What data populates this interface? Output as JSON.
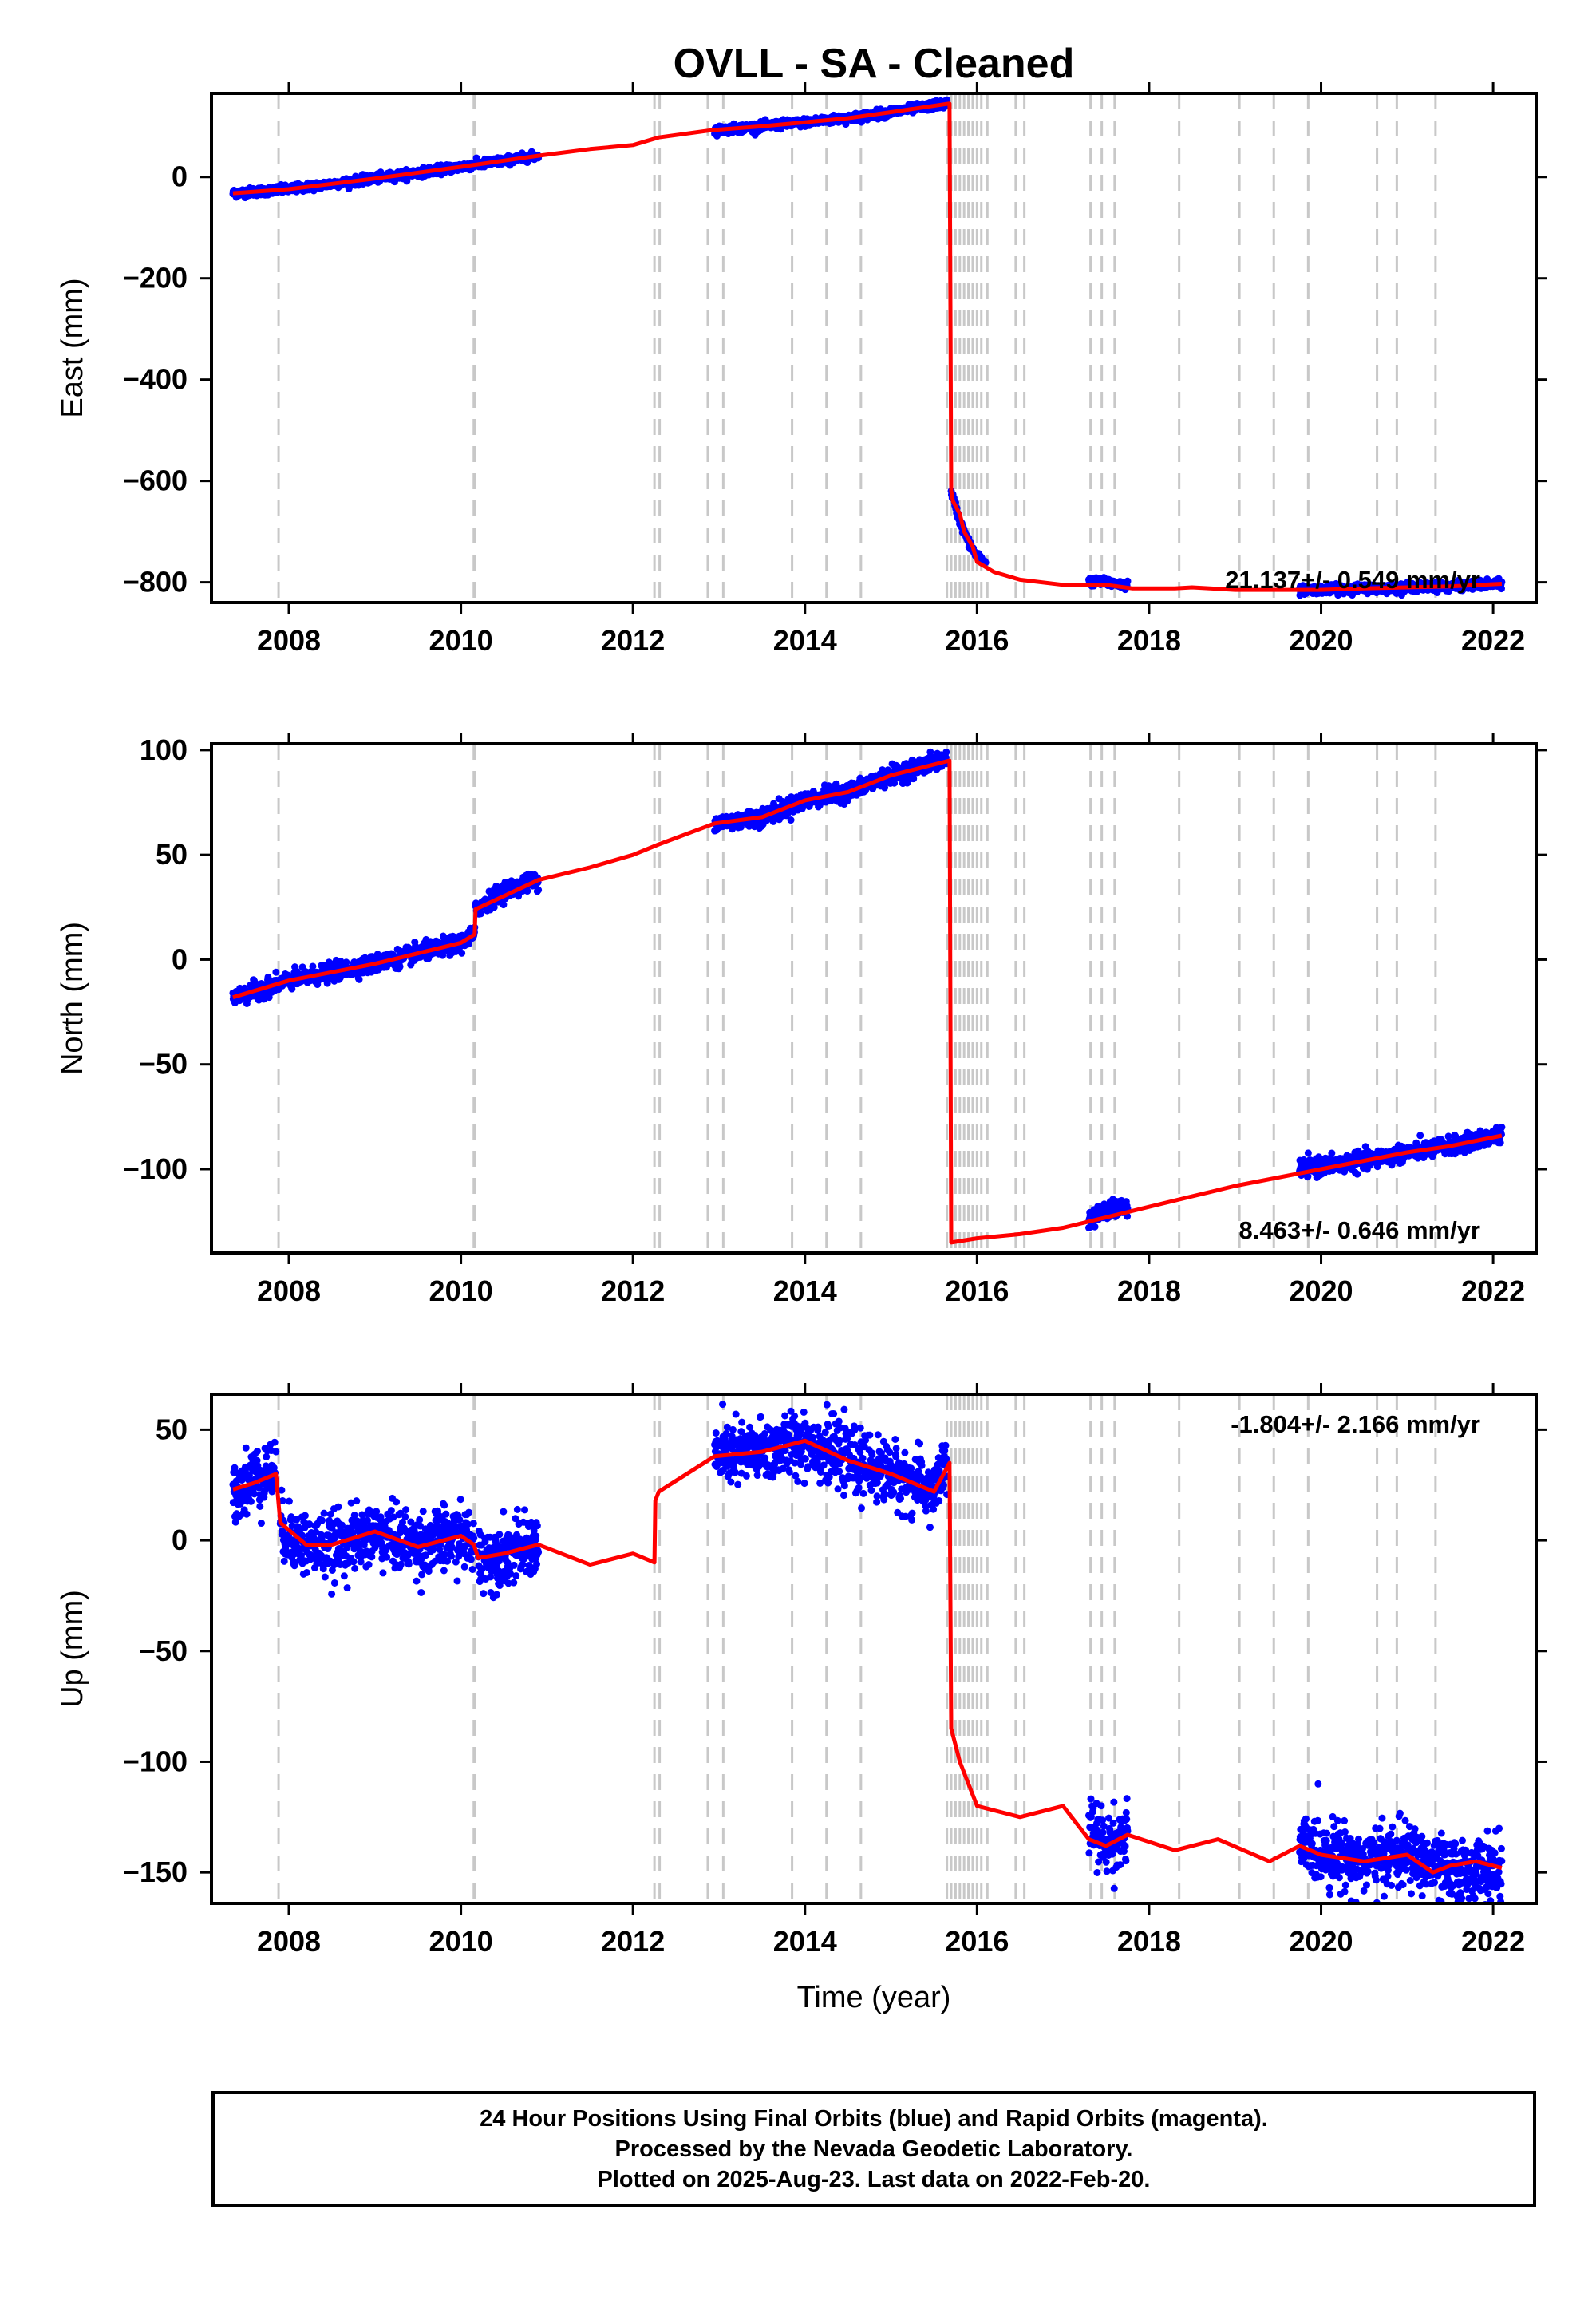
{
  "chart_data": {
    "type": "scatter",
    "title": "OVLL  - SA - Cleaned",
    "xlabel": "Time (year)",
    "xlim": [
      2007.1,
      2022.5
    ],
    "xticks": [
      2008,
      2010,
      2012,
      2014,
      2016,
      2018,
      2020,
      2022
    ],
    "colors": {
      "observations": "#0000ff",
      "model": "#ff0000",
      "offset_lines": "#c8c8c8"
    },
    "offset_events": [
      2007.88,
      2010.15,
      2010.16,
      2012.25,
      2012.31,
      2012.87,
      2013.05,
      2013.85,
      2014.25,
      2014.65,
      2015.65,
      2015.7,
      2015.75,
      2015.8,
      2015.85,
      2015.9,
      2015.95,
      2016.0,
      2016.05,
      2016.12,
      2016.45,
      2016.55,
      2017.32,
      2017.45,
      2017.6,
      2018.35,
      2019.05,
      2019.45,
      2019.85,
      2020.65,
      2020.88,
      2021.33
    ],
    "panels": [
      {
        "component": "East",
        "ylabel": "East (mm)",
        "ylim": [
          -840,
          165
        ],
        "yticks": [
          0,
          -200,
          -400,
          -600,
          -800
        ],
        "rate_text": "21.137+/- 0.549 mm/yr",
        "rate_position": "bottom-right",
        "observation_segments": [
          {
            "x": [
              2007.35,
              2008.0,
              2009.0,
              2010.0,
              2010.9
            ],
            "y": [
              -32,
              -24,
              -3,
              20,
              42
            ]
          },
          {
            "x": [
              2012.95,
              2013.5,
              2014.0,
              2014.5,
              2015.0,
              2015.65
            ],
            "y": [
              92,
              100,
              108,
              116,
              128,
              145
            ]
          },
          {
            "x": [
              2015.7,
              2015.8,
              2015.9,
              2016.0,
              2016.1
            ],
            "y": [
              -620,
              -680,
              -720,
              -750,
              -760
            ]
          },
          {
            "x": [
              2017.3,
              2017.5,
              2017.75
            ],
            "y": [
              -798,
              -800,
              -806
            ]
          },
          {
            "x": [
              2019.75,
              2020.5,
              2021.0,
              2021.5,
              2022.1
            ],
            "y": [
              -815,
              -812,
              -810,
              -808,
              -803
            ]
          }
        ],
        "model_line": {
          "x": [
            2007.35,
            2008.0,
            2009.0,
            2010.0,
            2010.9,
            2011.5,
            2012.0,
            2012.3,
            2012.9,
            2013.5,
            2014.0,
            2014.5,
            2015.0,
            2015.68,
            2015.7,
            2015.72,
            2015.8,
            2015.85,
            2015.95,
            2016.0,
            2016.2,
            2016.5,
            2017.0,
            2017.5,
            2017.8,
            2018.3,
            2018.5,
            2019.0,
            2019.5,
            2020.0,
            2020.5,
            2021.0,
            2021.5,
            2022.1
          ],
          "y": [
            -32,
            -24,
            -3,
            20,
            42,
            55,
            63,
            78,
            92,
            100,
            108,
            116,
            128,
            145,
            -620,
            -640,
            -665,
            -700,
            -730,
            -760,
            -780,
            -795,
            -805,
            -805,
            -812,
            -812,
            -810,
            -815,
            -815,
            -815,
            -812,
            -810,
            -808,
            -803
          ]
        }
      },
      {
        "component": "North",
        "ylabel": "North (mm)",
        "ylim": [
          -140,
          103
        ],
        "yticks": [
          100,
          50,
          0,
          -50,
          -100
        ],
        "rate_text": "8.463+/- 0.646 mm/yr",
        "rate_position": "bottom-right",
        "observation_segments": [
          {
            "x": [
              2007.35,
              2008.0,
              2009.0,
              2010.0,
              2010.16
            ],
            "y": [
              -18,
              -10,
              -2,
              8,
              12
            ]
          },
          {
            "x": [
              2010.17,
              2010.5,
              2010.9
            ],
            "y": [
              24,
              33,
              38
            ]
          },
          {
            "x": [
              2012.95,
              2013.5,
              2014.0,
              2014.5,
              2015.0,
              2015.65
            ],
            "y": [
              65,
              68,
              76,
              80,
              88,
              96
            ]
          },
          {
            "x": [
              2017.3,
              2017.5,
              2017.75
            ],
            "y": [
              -124,
              -120,
              -118
            ]
          },
          {
            "x": [
              2019.75,
              2020.5,
              2021.0,
              2021.5,
              2022.1
            ],
            "y": [
              -100,
              -96,
              -92,
              -89,
              -84
            ]
          }
        ],
        "model_line": {
          "x": [
            2007.35,
            2008.0,
            2009.0,
            2010.0,
            2010.16,
            2010.17,
            2010.9,
            2011.5,
            2012.0,
            2012.3,
            2012.95,
            2013.5,
            2014.0,
            2014.5,
            2015.0,
            2015.68,
            2015.7,
            2016.0,
            2016.5,
            2017.0,
            2017.5,
            2018.0,
            2018.5,
            2019.0,
            2019.5,
            2020.0,
            2020.5,
            2021.0,
            2021.5,
            2022.1
          ],
          "y": [
            -18,
            -10,
            -2,
            8,
            12,
            24,
            38,
            44,
            50,
            55,
            65,
            68,
            76,
            80,
            88,
            95,
            -135,
            -133,
            -131,
            -128,
            -123,
            -118,
            -113,
            -108,
            -104,
            -100,
            -96,
            -92,
            -89,
            -84
          ]
        }
      },
      {
        "component": "Up",
        "ylabel": "Up (mm)",
        "ylim": [
          -164,
          66
        ],
        "yticks": [
          50,
          0,
          -50,
          -100,
          -150
        ],
        "rate_text": "-1.804+/- 2.166 mm/yr",
        "rate_position": "top-right",
        "observation_segments": [
          {
            "x": [
              2007.35,
              2007.6,
              2007.85
            ],
            "y": [
              23,
              28,
              32
            ]
          },
          {
            "x": [
              2007.9,
              2008.2,
              2008.5,
              2009.0,
              2009.5,
              2010.0,
              2010.15
            ],
            "y": [
              5,
              -2,
              -3,
              3,
              -2,
              2,
              -2
            ]
          },
          {
            "x": [
              2010.2,
              2010.5,
              2010.9
            ],
            "y": [
              -8,
              -6,
              -2
            ]
          },
          {
            "x": [
              2012.95,
              2013.5,
              2014.0,
              2014.5,
              2015.0,
              2015.5,
              2015.65
            ],
            "y": [
              38,
              40,
              45,
              36,
              30,
              22,
              35
            ]
          },
          {
            "x": [
              2017.3,
              2017.5,
              2017.75
            ],
            "y": [
              -130,
              -138,
              -133
            ]
          },
          {
            "x": [
              2019.75,
              2020.5,
              2021.0,
              2021.5,
              2022.1
            ],
            "y": [
              -138,
              -145,
              -142,
              -150,
              -148
            ]
          }
        ],
        "model_line": {
          "x": [
            2007.35,
            2007.6,
            2007.85,
            2007.9,
            2008.2,
            2008.5,
            2009.0,
            2009.5,
            2010.0,
            2010.15,
            2010.2,
            2010.5,
            2010.9,
            2011.5,
            2012.0,
            2012.25,
            2012.26,
            2012.3,
            2012.95,
            2013.5,
            2014.0,
            2014.5,
            2015.0,
            2015.5,
            2015.68,
            2015.7,
            2015.8,
            2016.0,
            2016.5,
            2017.0,
            2017.3,
            2017.5,
            2017.75,
            2018.3,
            2018.8,
            2019.4,
            2019.75,
            2020.0,
            2020.5,
            2021.0,
            2021.3,
            2021.5,
            2021.8,
            2022.1
          ],
          "y": [
            23,
            26,
            30,
            8,
            -2,
            -2,
            4,
            -3,
            2,
            -2,
            -8,
            -6,
            -2,
            -11,
            -6,
            -10,
            18,
            22,
            38,
            40,
            45,
            36,
            30,
            22,
            35,
            -85,
            -100,
            -120,
            -125,
            -120,
            -135,
            -138,
            -133,
            -140,
            -135,
            -145,
            -138,
            -142,
            -145,
            -142,
            -150,
            -147,
            -145,
            -148
          ]
        }
      }
    ]
  },
  "footer": {
    "line1": "24 Hour Positions Using Final Orbits (blue) and Rapid Orbits (magenta).",
    "line2": "Processed by the Nevada Geodetic Laboratory.",
    "line3": "Plotted on 2025-Aug-23. Last data on 2022-Feb-20."
  }
}
